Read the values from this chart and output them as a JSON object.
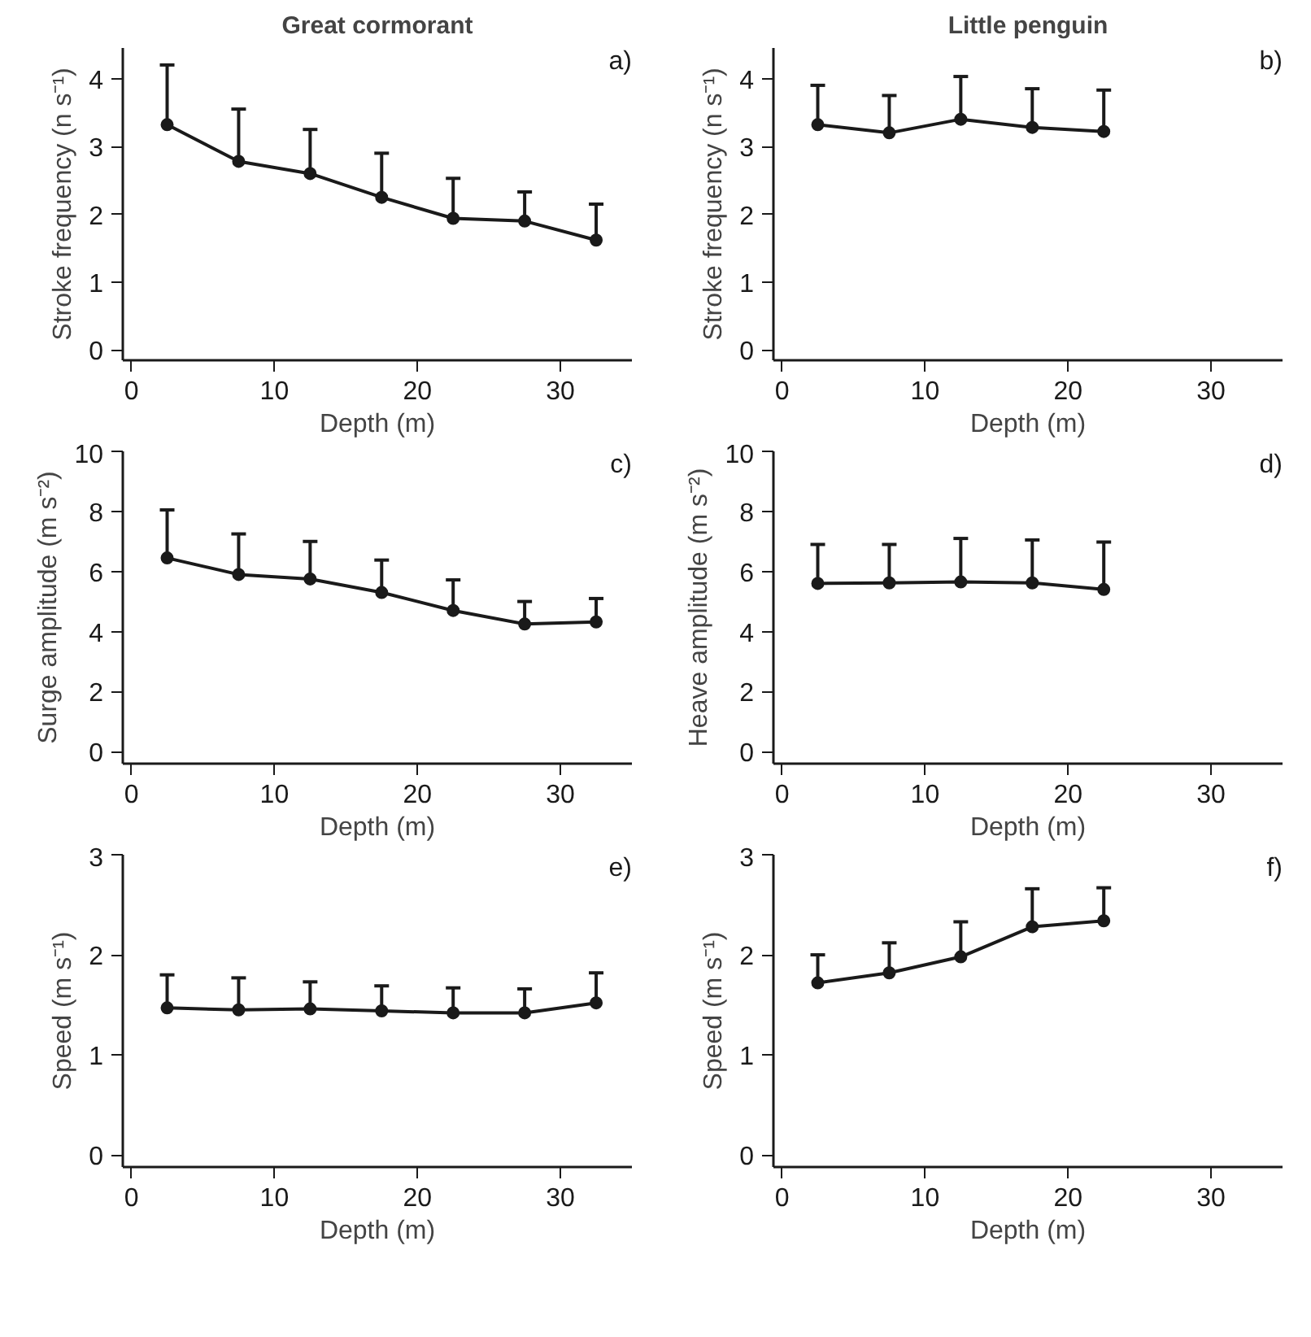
{
  "chart_data": [
    {
      "type": "line",
      "title": "Great cormorant",
      "xlabel": "Depth (m)",
      "ylabel": "Stroke frequency (n s⁻¹)",
      "annotations": [
        "a)"
      ],
      "x": [
        2.5,
        7.5,
        12.5,
        17.5,
        22.5,
        27.5,
        32.5
      ],
      "values": [
        3.32,
        2.78,
        2.6,
        2.25,
        1.94,
        1.9,
        1.62
      ],
      "errors": [
        [
          3.32,
          4.2
        ],
        [
          2.78,
          3.55
        ],
        [
          2.6,
          3.25
        ],
        [
          2.25,
          2.9
        ],
        [
          1.94,
          2.53
        ],
        [
          1.9,
          2.33
        ],
        [
          1.62,
          2.15
        ]
      ],
      "color": "#1a1a1a",
      "marker": "circle",
      "line_style": "solid",
      "grid": false,
      "xlim": [
        -0.6,
        35
      ],
      "xticks": [
        0,
        10,
        20,
        30
      ],
      "ylim": [
        -0.15,
        4.45
      ],
      "yticks": [
        0,
        1,
        2,
        3,
        4
      ]
    },
    {
      "type": "line",
      "title": "Little penguin",
      "xlabel": "Depth (m)",
      "ylabel": "Stroke frequency (n s⁻¹)",
      "annotations": [
        "b)"
      ],
      "x": [
        2.5,
        7.5,
        12.5,
        17.5,
        22.5
      ],
      "values": [
        3.32,
        3.2,
        3.4,
        3.28,
        3.22
      ],
      "errors": [
        [
          3.32,
          3.9
        ],
        [
          3.2,
          3.75
        ],
        [
          3.4,
          4.03
        ],
        [
          3.28,
          3.85
        ],
        [
          3.22,
          3.83
        ]
      ],
      "color": "#1a1a1a",
      "marker": "circle",
      "line_style": "solid",
      "grid": false,
      "xlim": [
        -0.6,
        35
      ],
      "xticks": [
        0,
        10,
        20,
        30
      ],
      "ylim": [
        -0.15,
        4.45
      ],
      "yticks": [
        0,
        1,
        2,
        3,
        4
      ]
    },
    {
      "type": "line",
      "xlabel": "Depth (m)",
      "ylabel": "Surge amplitude (m s⁻²)",
      "annotations": [
        "c)"
      ],
      "x": [
        2.5,
        7.5,
        12.5,
        17.5,
        22.5,
        27.5,
        32.5
      ],
      "values": [
        6.45,
        5.9,
        5.75,
        5.3,
        4.7,
        4.25,
        4.32
      ],
      "errors": [
        [
          6.45,
          8.05
        ],
        [
          5.9,
          7.25
        ],
        [
          5.75,
          7.0
        ],
        [
          5.3,
          6.38
        ],
        [
          4.7,
          5.72
        ],
        [
          4.25,
          5.0
        ],
        [
          4.32,
          5.1
        ]
      ],
      "color": "#1a1a1a",
      "marker": "circle",
      "line_style": "solid",
      "grid": false,
      "xlim": [
        -0.6,
        35
      ],
      "xticks": [
        0,
        10,
        20,
        30
      ],
      "ylim": [
        -0.4,
        10
      ],
      "yticks": [
        0,
        2,
        4,
        6,
        8,
        10
      ]
    },
    {
      "type": "line",
      "xlabel": "Depth (m)",
      "ylabel": "Heave amplitude (m s⁻²)",
      "annotations": [
        "d)"
      ],
      "x": [
        2.5,
        7.5,
        12.5,
        17.5,
        22.5
      ],
      "values": [
        5.6,
        5.62,
        5.65,
        5.62,
        5.4
      ],
      "errors": [
        [
          5.6,
          6.9
        ],
        [
          5.62,
          6.9
        ],
        [
          5.65,
          7.1
        ],
        [
          5.62,
          7.05
        ],
        [
          5.4,
          6.98
        ]
      ],
      "color": "#1a1a1a",
      "marker": "circle",
      "line_style": "solid",
      "grid": false,
      "xlim": [
        -0.6,
        35
      ],
      "xticks": [
        0,
        10,
        20,
        30
      ],
      "ylim": [
        -0.4,
        10
      ],
      "yticks": [
        0,
        2,
        4,
        6,
        8,
        10
      ]
    },
    {
      "type": "line",
      "xlabel": "Depth (m)",
      "ylabel": "Speed (m s⁻¹)",
      "annotations": [
        "e)"
      ],
      "x": [
        2.5,
        7.5,
        12.5,
        17.5,
        22.5,
        27.5,
        32.5
      ],
      "values": [
        1.47,
        1.45,
        1.46,
        1.44,
        1.42,
        1.42,
        1.52
      ],
      "errors": [
        [
          1.47,
          1.8
        ],
        [
          1.45,
          1.77
        ],
        [
          1.46,
          1.73
        ],
        [
          1.44,
          1.69
        ],
        [
          1.42,
          1.67
        ],
        [
          1.42,
          1.66
        ],
        [
          1.52,
          1.82
        ]
      ],
      "color": "#1a1a1a",
      "marker": "circle",
      "line_style": "solid",
      "grid": false,
      "xlim": [
        -0.6,
        35
      ],
      "xticks": [
        0,
        10,
        20,
        30
      ],
      "ylim": [
        -0.12,
        3
      ],
      "yticks": [
        0,
        1,
        2,
        3
      ]
    },
    {
      "type": "line",
      "xlabel": "Depth (m)",
      "ylabel": "Speed (m s⁻¹)",
      "annotations": [
        "f)"
      ],
      "x": [
        2.5,
        7.5,
        12.5,
        17.5,
        22.5
      ],
      "values": [
        1.72,
        1.82,
        1.98,
        2.28,
        2.34
      ],
      "errors": [
        [
          1.72,
          2.0
        ],
        [
          1.82,
          2.12
        ],
        [
          1.98,
          2.33
        ],
        [
          2.28,
          2.66
        ],
        [
          2.34,
          2.67
        ]
      ],
      "color": "#1a1a1a",
      "marker": "circle",
      "line_style": "solid",
      "grid": false,
      "xlim": [
        -0.6,
        35
      ],
      "xticks": [
        0,
        10,
        20,
        30
      ],
      "ylim": [
        -0.12,
        3
      ],
      "yticks": [
        0,
        1,
        2,
        3
      ]
    }
  ]
}
